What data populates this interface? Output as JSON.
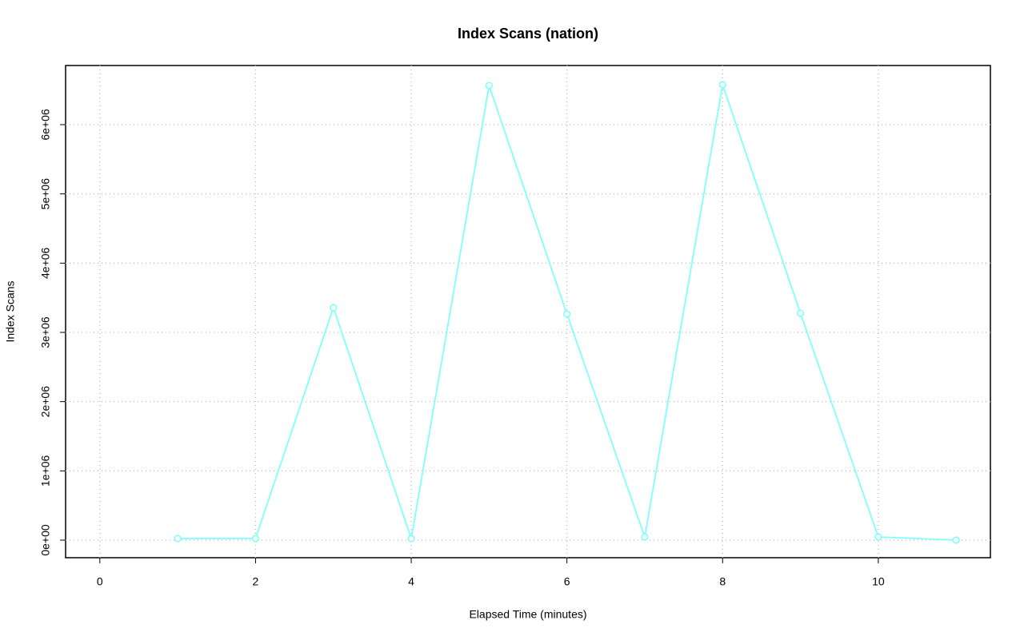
{
  "chart_data": {
    "type": "line",
    "title": "Index Scans (nation)",
    "x_label": "Elapsed Time (minutes)",
    "y_label": "Index Scans",
    "x": [
      1,
      2,
      3,
      4,
      5,
      6,
      7,
      8,
      9,
      10,
      11
    ],
    "values": [
      23000,
      23000,
      3358000,
      23000,
      6565000,
      3265000,
      46000,
      6577000,
      3277000,
      46000,
      0
    ],
    "color": "#80ffff",
    "xlim": [
      -0.44,
      11.44
    ],
    "xticks": [
      0,
      2,
      4,
      6,
      8,
      10
    ],
    "ylim": [
      -254000,
      6854000
    ],
    "yticks": [
      {
        "value": 0,
        "label": "0e+00"
      },
      {
        "value": 1000000,
        "label": "1e+06"
      },
      {
        "value": 2000000,
        "label": "2e+06"
      },
      {
        "value": 3000000,
        "label": "3e+06"
      },
      {
        "value": 4000000,
        "label": "4e+06"
      },
      {
        "value": 5000000,
        "label": "5e+06"
      },
      {
        "value": 6000000,
        "label": "6e+06"
      }
    ],
    "grid": true
  }
}
